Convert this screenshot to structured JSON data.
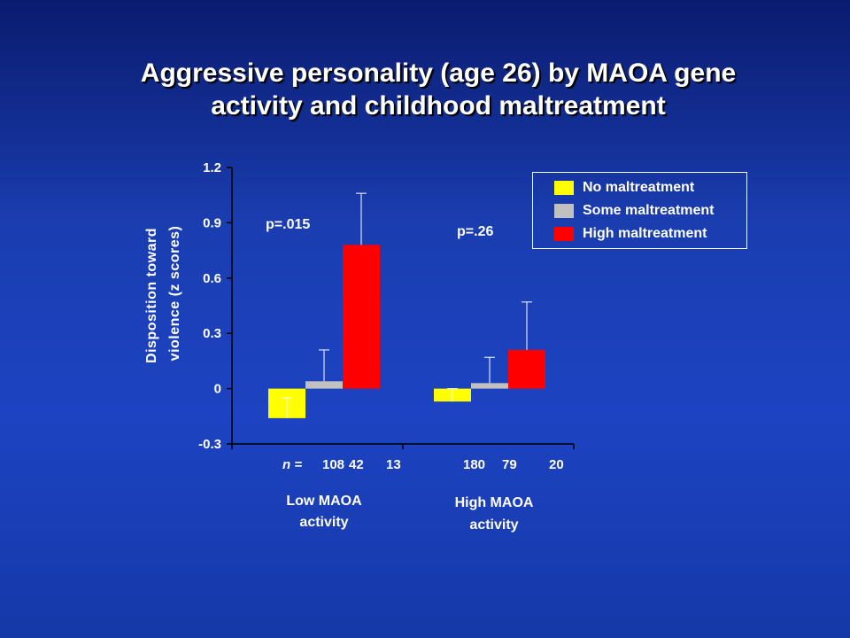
{
  "slide": {
    "title_line1": "Aggressive personality (age 26) by MAOA gene",
    "title_line2": "activity and childhood maltreatment"
  },
  "chart_data": {
    "type": "bar",
    "title": "Aggressive personality (age 26) by MAOA gene activity and childhood maltreatment",
    "ylabel_line1": "Disposition toward",
    "ylabel_line2": "violence (z scores)",
    "ylim": [
      -0.3,
      1.2
    ],
    "yticks": [
      -0.3,
      0,
      0.3,
      0.6,
      0.9,
      1.2
    ],
    "ytick_labels": [
      "-0.3",
      "0",
      "0.3",
      "0.6",
      "0.9",
      "1.2"
    ],
    "grid": false,
    "legend_position": "top-right",
    "categories": [
      "Low MAOA activity",
      "High MAOA activity"
    ],
    "category_labels": [
      {
        "line1": "Low MAOA",
        "line2": "activity"
      },
      {
        "line1": "High MAOA",
        "line2": "activity"
      }
    ],
    "series": [
      {
        "name": "No maltreatment",
        "color": "#ffff00",
        "values": [
          -0.16,
          -0.07
        ],
        "error_upper": [
          -0.05,
          0.0
        ]
      },
      {
        "name": "Some maltreatment",
        "color": "#c0c0c0",
        "values": [
          0.04,
          0.03
        ],
        "error_upper": [
          0.21,
          0.17
        ]
      },
      {
        "name": "High maltreatment",
        "color": "#ff0000",
        "values": [
          0.78,
          0.21
        ],
        "error_upper": [
          1.06,
          0.47
        ]
      }
    ],
    "annotations": [
      "p=.015",
      "p=.26"
    ],
    "sample_sizes": {
      "prefix": "n =",
      "values": [
        "108",
        "42",
        "13",
        "180",
        "79",
        "20"
      ]
    }
  }
}
